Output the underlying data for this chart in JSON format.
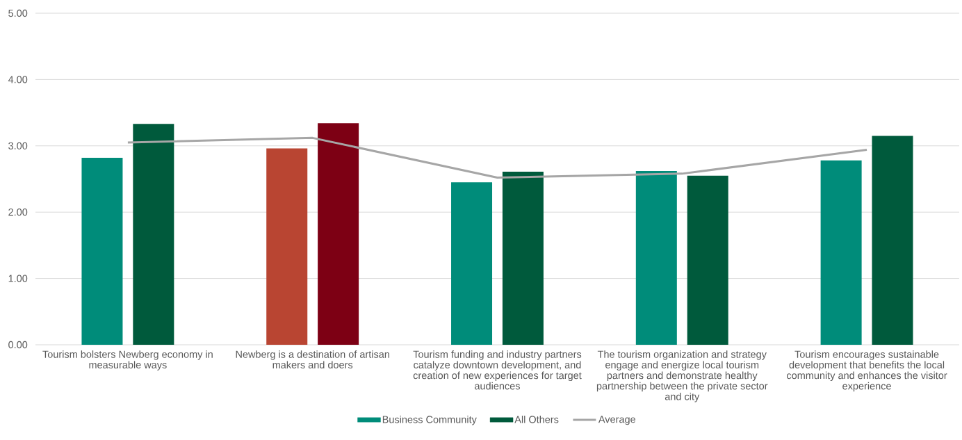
{
  "chart_data": {
    "type": "bar",
    "categories": [
      "Tourism bolsters Newberg economy in measurable ways",
      "Newberg is a destination of artisan makers and doers",
      "Tourism funding and industry partners catalyze downtown development, and creation of new experiences for target audiences",
      "The tourism organization and strategy engage and energize local tourism partners and demonstrate healthy partnership between the private sector and city",
      "Tourism encourages sustainable development that benefits the local community and enhances the visitor experience"
    ],
    "series": [
      {
        "name": "Business Community",
        "color": "#008c7a",
        "colors": [
          "#008c7a",
          "#b94532",
          "#008c7a",
          "#008c7a",
          "#008c7a"
        ],
        "values": [
          2.82,
          2.96,
          2.45,
          2.62,
          2.78
        ]
      },
      {
        "name": "All Others",
        "color": "#005a3c",
        "colors": [
          "#005a3c",
          "#7d0014",
          "#005a3c",
          "#005a3c",
          "#005a3c"
        ],
        "values": [
          3.33,
          3.34,
          2.61,
          2.55,
          3.15
        ]
      },
      {
        "name": "Average",
        "type": "line",
        "color": "#a6a6a6",
        "values": [
          3.05,
          3.12,
          2.52,
          2.58,
          2.94
        ]
      }
    ],
    "ylim": [
      0,
      5
    ],
    "yticks": [
      {
        "value": 0,
        "label": "0.00"
      },
      {
        "value": 1,
        "label": "1.00"
      },
      {
        "value": 2,
        "label": "2.00"
      },
      {
        "value": 3,
        "label": "3.00"
      },
      {
        "value": 4,
        "label": "4.00"
      },
      {
        "value": 5,
        "label": "5.00"
      }
    ],
    "grid": "y",
    "legend": "bottom"
  }
}
